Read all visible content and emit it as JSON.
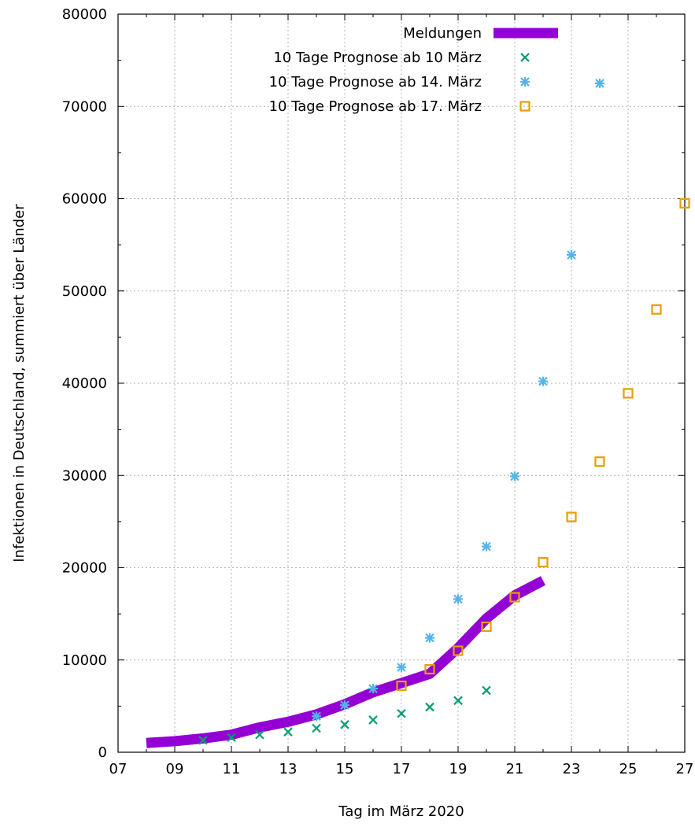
{
  "chart_data": {
    "type": "line",
    "title": "",
    "xlabel": "Tag im März 2020",
    "ylabel": "Infektionen in Deutschland, summiert über Länder",
    "xlim": [
      7,
      27
    ],
    "ylim": [
      0,
      80000
    ],
    "x_ticks": [
      7,
      9,
      11,
      13,
      15,
      17,
      19,
      21,
      23,
      25,
      27
    ],
    "x_tick_labels": [
      "07",
      "09",
      "11",
      "13",
      "15",
      "17",
      "19",
      "21",
      "23",
      "25",
      "27"
    ],
    "y_ticks": [
      0,
      10000,
      20000,
      30000,
      40000,
      50000,
      60000,
      70000,
      80000
    ],
    "y_tick_labels": [
      "0",
      "10000",
      "20000",
      "30000",
      "40000",
      "50000",
      "60000",
      "70000",
      "80000"
    ],
    "grid": true,
    "legend_position": "top-right",
    "series": [
      {
        "name": "Meldungen",
        "style": "thick-line",
        "color": "#9400d3",
        "x": [
          8,
          9,
          10,
          11,
          12,
          13,
          14,
          15,
          16,
          17,
          18,
          19,
          20,
          21,
          22
        ],
        "y": [
          1000,
          1200,
          1500,
          1900,
          2700,
          3300,
          4100,
          5200,
          6500,
          7500,
          8500,
          11300,
          14500,
          17000,
          18600
        ]
      },
      {
        "name": "10 Tage Prognose ab 10 März",
        "style": "marker-x",
        "color": "#009e73",
        "x": [
          10,
          11,
          12,
          13,
          14,
          15,
          16,
          17,
          18,
          19,
          20
        ],
        "y": [
          1300,
          1600,
          1900,
          2200,
          2600,
          3000,
          3500,
          4200,
          4900,
          5600,
          6700
        ]
      },
      {
        "name": "10 Tage Prognose ab 14. März",
        "style": "marker-star",
        "color": "#56b4e9",
        "x": [
          14,
          15,
          16,
          17,
          18,
          19,
          20,
          21,
          22,
          23,
          24
        ],
        "y": [
          3900,
          5100,
          6900,
          9200,
          12400,
          16600,
          22300,
          29900,
          40200,
          53900,
          72500
        ]
      },
      {
        "name": "10 Tage Prognose ab 17. März",
        "style": "marker-square",
        "color": "#e69f00",
        "x": [
          17,
          18,
          19,
          20,
          21,
          22,
          23,
          24,
          25,
          26,
          27
        ],
        "y": [
          7200,
          9000,
          11000,
          13600,
          16800,
          20600,
          25500,
          31500,
          38900,
          48000,
          59500
        ]
      }
    ]
  }
}
